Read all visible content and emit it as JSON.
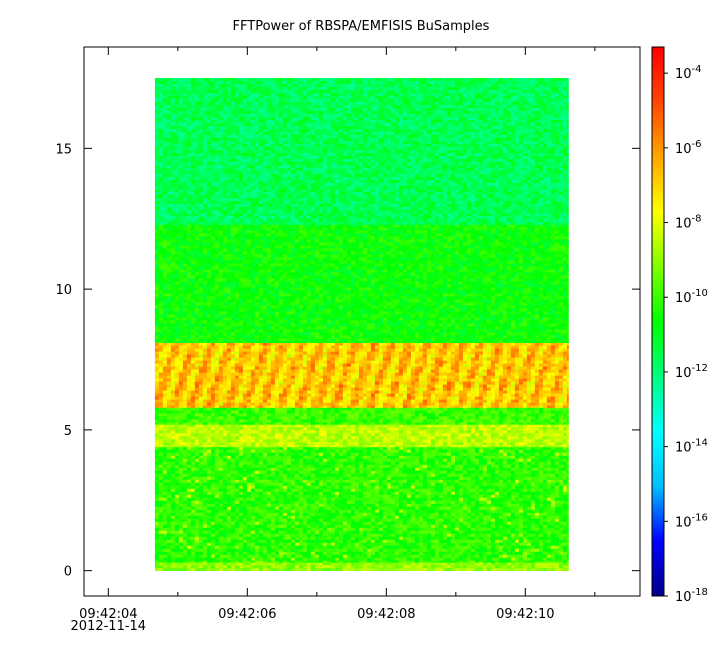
{
  "chart_data": {
    "type": "heatmap",
    "title": "FFTPower of RBSPA/EMFISIS  BuSamples",
    "xlabel": "",
    "ylabel": "",
    "x_tick_labels": [
      [
        "09:42:04",
        "2012-11-14"
      ],
      [
        "09:42:06"
      ],
      [
        "09:42:08"
      ],
      [
        "09:42:10"
      ]
    ],
    "x_tick_values_seconds": [
      4,
      6,
      8,
      10
    ],
    "x_minor_tick_values_seconds": [
      5,
      7,
      9,
      11
    ],
    "xlim_seconds": [
      3.65,
      11.65
    ],
    "data_extent_seconds": [
      4.67,
      10.62
    ],
    "ylim": [
      -0.9,
      18.6
    ],
    "y_ticks": [
      0,
      5,
      10,
      15
    ],
    "y_tick_labels": [
      "0",
      "5",
      "10",
      "15"
    ],
    "data_extent_y": [
      0,
      17.5
    ],
    "bands": [
      {
        "y": [
          0,
          0.3
        ],
        "log10_power": -9.0
      },
      {
        "y": [
          0.3,
          4.4
        ],
        "log10_power": -10.2
      },
      {
        "y": [
          4.4,
          5.2
        ],
        "log10_power": -8.5
      },
      {
        "y": [
          5.2,
          5.8
        ],
        "log10_power": -10.0
      },
      {
        "y": [
          5.8,
          8.1
        ],
        "log10_power": -6.8
      },
      {
        "y": [
          8.1,
          12.3
        ],
        "log10_power": -10.6
      },
      {
        "y": [
          12.3,
          17.5
        ],
        "log10_power": -11.6
      }
    ],
    "colorbar": {
      "scale": "log",
      "range_log10": [
        -18,
        -3.3
      ],
      "tick_exponents": [
        -18,
        -16,
        -14,
        -12,
        -10,
        -8,
        -6,
        -4
      ],
      "tick_base": "10",
      "colors": [
        "#00008b",
        "#0000ff",
        "#00bfff",
        "#00ffff",
        "#00ff80",
        "#00ff00",
        "#80ff00",
        "#ffff00",
        "#ffa500",
        "#ff4500",
        "#ff0000"
      ]
    }
  }
}
